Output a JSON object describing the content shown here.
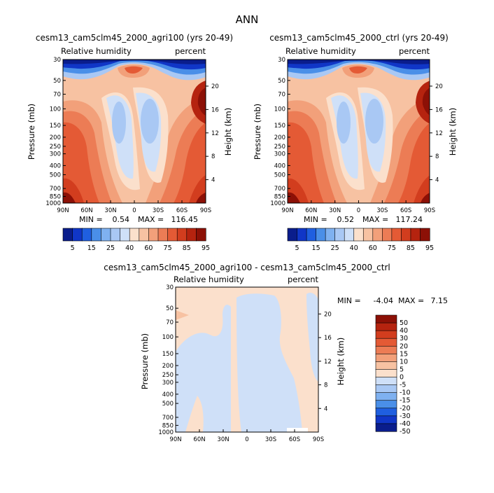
{
  "title": "ANN",
  "panels": [
    {
      "title": "cesm13_cam5clm45_2000_agri100 (yrs 20-49)",
      "variable": "Relative humidity",
      "units": "percent",
      "min_label": "MIN =",
      "min": "0.54",
      "max_label": "MAX =",
      "max": "116.45"
    },
    {
      "title": "cesm13_cam5clm45_2000_ctrl (yrs 20-49)",
      "variable": "Relative humidity",
      "units": "percent",
      "min_label": "MIN =",
      "min": "0.52",
      "max_label": "MAX =",
      "max": "117.24"
    },
    {
      "title": "cesm13_cam5clm45_2000_agri100 - cesm13_cam5clm45_2000_ctrl",
      "variable": "Relative humidity",
      "units": "percent",
      "min_label": "MIN =",
      "min": "-4.04",
      "max_label": "MAX =",
      "max": "7.15"
    }
  ],
  "axis_labels": {
    "pressure": "Pressure (mb)",
    "height": "Height (km)"
  },
  "chart_data": [
    {
      "type": "heatmap",
      "title": "cesm13_cam5clm45_2000_agri100 (yrs 20-49)",
      "ylabel": "Pressure (mb)",
      "y2label": "Height (km)",
      "x_ticks": [
        "90N",
        "60N",
        "30N",
        "0",
        "30S",
        "60S",
        "90S"
      ],
      "y_ticks": [
        30,
        50,
        70,
        100,
        150,
        200,
        250,
        300,
        400,
        500,
        700,
        850,
        1000
      ],
      "y2_ticks": [
        4,
        8,
        12,
        16,
        20
      ],
      "min": 0.54,
      "max": 116.45
    },
    {
      "type": "heatmap",
      "title": "cesm13_cam5clm45_2000_ctrl (yrs 20-49)",
      "ylabel": "Pressure (mb)",
      "y2label": "Height (km)",
      "x_ticks": [
        "90N",
        "60N",
        "30N",
        "0",
        "30S",
        "60S",
        "90S"
      ],
      "y_ticks": [
        30,
        50,
        70,
        100,
        150,
        200,
        250,
        300,
        400,
        500,
        700,
        850,
        1000
      ],
      "y2_ticks": [
        4,
        8,
        12,
        16,
        20
      ],
      "min": 0.52,
      "max": 117.24
    },
    {
      "type": "heatmap",
      "title": "cesm13_cam5clm45_2000_agri100 - cesm13_cam5clm45_2000_ctrl",
      "ylabel": "Pressure (mb)",
      "y2label": "Height (km)",
      "x_ticks": [
        "90N",
        "60N",
        "30N",
        "0",
        "30S",
        "60S",
        "90S"
      ],
      "y_ticks": [
        30,
        50,
        70,
        100,
        150,
        200,
        250,
        300,
        400,
        500,
        700,
        850,
        1000
      ],
      "y2_ticks": [
        4,
        8,
        12,
        16,
        20
      ],
      "min": -4.04,
      "max": 7.15
    }
  ],
  "colorbar_top": {
    "labels": [
      "5",
      "15",
      "25",
      "40",
      "60",
      "75",
      "85",
      "95"
    ],
    "colors": [
      "#0a1d8c",
      "#1036c7",
      "#1f5fe0",
      "#4a8fe8",
      "#7fb1f0",
      "#a9c8f4",
      "#cfe0f8",
      "#fbe0cc",
      "#f7c2a2",
      "#f2a07a",
      "#ec7c55",
      "#e45a35",
      "#d23d1e",
      "#b5230f",
      "#8c1006"
    ]
  },
  "colorbar_diff": {
    "labels": [
      "50",
      "40",
      "30",
      "20",
      "15",
      "10",
      "5",
      "0",
      "-5",
      "-10",
      "-15",
      "-20",
      "-30",
      "-40",
      "-50"
    ],
    "colors": [
      "#8c1006",
      "#b5230f",
      "#d23d1e",
      "#e45a35",
      "#ec7c55",
      "#f2a07a",
      "#f7c2a2",
      "#fbe0cc",
      "#cfe0f8",
      "#a9c8f4",
      "#7fb1f0",
      "#4a8fe8",
      "#1f5fe0",
      "#1036c7",
      "#0a1d8c"
    ]
  },
  "colors": {
    "dark_blue": "#0a1d8c",
    "light_blue": "#cfe0f8",
    "peach": "#fbe0cc",
    "dark_red": "#8c1006"
  }
}
